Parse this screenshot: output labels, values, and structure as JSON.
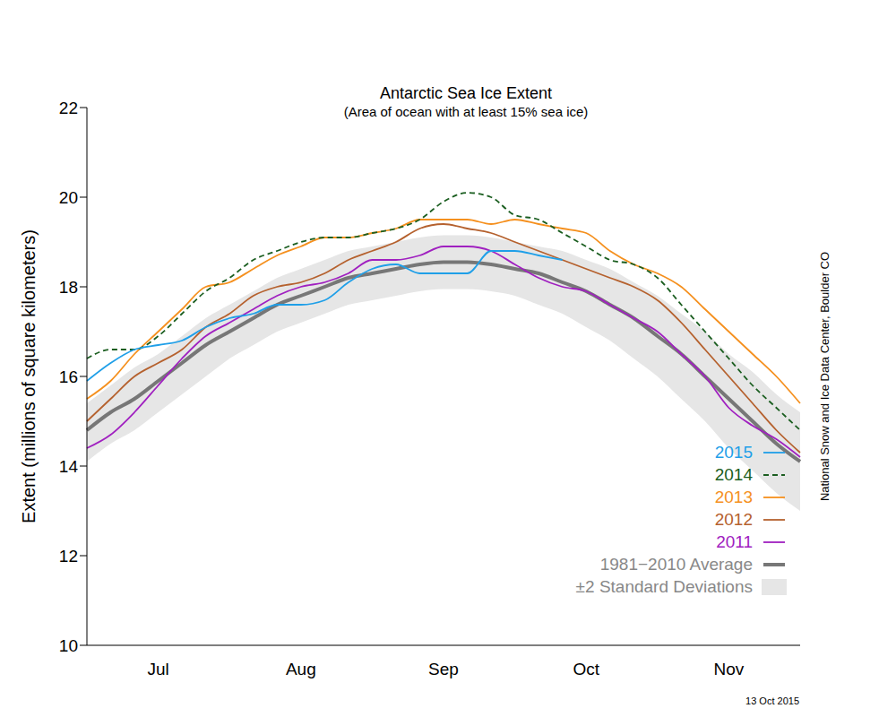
{
  "chart_data": {
    "type": "line",
    "title": "Antarctic Sea Ice Extent",
    "subtitle": "(Area of ocean with at least 15% sea ice)",
    "y_label": "Extent (millions of square kilometers)",
    "annotations": [
      "National Snow and Ice Data Center, Boulder CO",
      "13 Oct 2015"
    ],
    "categories": [
      null,
      null,
      null,
      "Jul",
      null,
      null,
      null,
      null,
      null,
      "Aug",
      null,
      null,
      null,
      null,
      null,
      "Sep",
      null,
      null,
      null,
      null,
      null,
      "Oct",
      null,
      null,
      null,
      null,
      null,
      "Nov",
      null,
      null,
      null
    ],
    "ylim": [
      10,
      22
    ],
    "yticks": [
      10,
      12,
      14,
      16,
      18,
      20,
      22
    ],
    "grid": false,
    "legend": "lower right",
    "series": [
      {
        "name": "2015",
        "color": "#1f9fe8",
        "line_style": "solid",
        "values": [
          15.9,
          16.3,
          16.6,
          16.7,
          16.8,
          17.1,
          17.3,
          17.4,
          17.6,
          17.6,
          17.7,
          18.1,
          18.4,
          18.5,
          18.3,
          18.3,
          18.3,
          18.8,
          18.8,
          18.7,
          18.6,
          null,
          null,
          null,
          null,
          null,
          null,
          null,
          null,
          null,
          null
        ]
      },
      {
        "name": "2014",
        "color": "#1b5e20",
        "line_style": "dashed",
        "values": [
          16.4,
          16.6,
          16.6,
          16.9,
          17.4,
          17.9,
          18.2,
          18.6,
          18.8,
          19.0,
          19.1,
          19.1,
          19.2,
          19.3,
          19.5,
          19.9,
          20.1,
          20.0,
          19.6,
          19.5,
          19.2,
          18.9,
          18.6,
          18.5,
          18.2,
          17.6,
          17.0,
          16.4,
          15.8,
          15.3,
          14.8
        ]
      },
      {
        "name": "2013",
        "color": "#f5901e",
        "line_style": "solid",
        "values": [
          15.5,
          15.9,
          16.5,
          17.0,
          17.5,
          18.0,
          18.1,
          18.4,
          18.7,
          18.9,
          19.1,
          19.1,
          19.2,
          19.3,
          19.5,
          19.5,
          19.5,
          19.4,
          19.5,
          19.4,
          19.3,
          19.2,
          18.8,
          18.5,
          18.3,
          18.0,
          17.5,
          17.0,
          16.5,
          16.0,
          15.4
        ]
      },
      {
        "name": "2012",
        "color": "#b5612e",
        "line_style": "solid",
        "values": [
          15.0,
          15.5,
          16.0,
          16.3,
          16.6,
          17.1,
          17.4,
          17.8,
          18.0,
          18.1,
          18.3,
          18.6,
          18.8,
          19.0,
          19.3,
          19.4,
          19.3,
          19.2,
          19.0,
          18.8,
          18.6,
          18.4,
          18.2,
          18.0,
          17.7,
          17.2,
          16.6,
          16.0,
          15.4,
          14.8,
          14.3
        ]
      },
      {
        "name": "2011",
        "color": "#a020c0",
        "line_style": "solid",
        "values": [
          14.4,
          14.7,
          15.2,
          15.8,
          16.4,
          16.9,
          17.2,
          17.5,
          17.8,
          18.0,
          18.1,
          18.3,
          18.6,
          18.6,
          18.7,
          18.9,
          18.9,
          18.8,
          18.5,
          18.2,
          18.0,
          17.9,
          17.6,
          17.3,
          17.0,
          16.5,
          16.0,
          15.3,
          14.9,
          14.6,
          14.2
        ]
      },
      {
        "name": "1981−2010 Average",
        "color": "#777777",
        "line_style": "solid",
        "values": [
          14.8,
          15.2,
          15.5,
          15.9,
          16.3,
          16.7,
          17.0,
          17.3,
          17.6,
          17.8,
          18.0,
          18.2,
          18.3,
          18.4,
          18.5,
          18.55,
          18.55,
          18.5,
          18.4,
          18.3,
          18.1,
          17.9,
          17.6,
          17.3,
          16.9,
          16.5,
          16.0,
          15.5,
          15.0,
          14.5,
          14.1
        ]
      },
      {
        "name": "±2 Standard Deviations",
        "type": "band",
        "color": "#e6e6e6",
        "lower": [
          14.1,
          14.5,
          14.8,
          15.2,
          15.6,
          16.0,
          16.4,
          16.7,
          17.0,
          17.2,
          17.4,
          17.6,
          17.7,
          17.8,
          17.9,
          17.95,
          17.95,
          17.9,
          17.8,
          17.6,
          17.4,
          17.1,
          16.8,
          16.4,
          16.0,
          15.5,
          15.0,
          14.4,
          13.9,
          13.4,
          13.0
        ],
        "upper": [
          15.4,
          15.8,
          16.2,
          16.5,
          16.9,
          17.3,
          17.6,
          17.9,
          18.2,
          18.4,
          18.6,
          18.8,
          18.9,
          19.0,
          19.1,
          19.15,
          19.15,
          19.1,
          19.0,
          18.9,
          18.8,
          18.6,
          18.4,
          18.1,
          17.8,
          17.4,
          17.0,
          16.5,
          16.1,
          15.6,
          15.2
        ]
      }
    ]
  }
}
